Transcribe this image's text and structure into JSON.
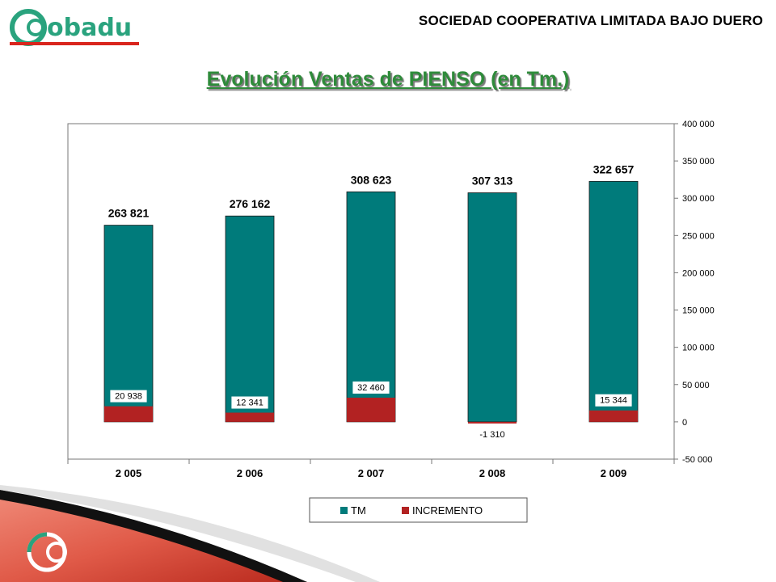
{
  "header": {
    "logo_text": "Cobadu",
    "organization": "SOCIEDAD COOPERATIVA LIMITADA BAJO DUERO",
    "title": "Evolución Ventas de PIENSO (en Tm.)"
  },
  "colors": {
    "tm": "#007b7b",
    "incremento": "#b22222",
    "title": "#2e8b3a",
    "logo": "#2aa37e",
    "logo_accent": "#d9251d"
  },
  "chart_data": {
    "type": "bar",
    "categories": [
      "2 005",
      "2 006",
      "2 007",
      "2 008",
      "2 009"
    ],
    "series": [
      {
        "name": "TM",
        "values": [
          263821,
          276162,
          308623,
          307313,
          322657
        ],
        "labels": [
          "263 821",
          "276 162",
          "308 623",
          "307 313",
          "322 657"
        ]
      },
      {
        "name": "INCREMENTO",
        "values": [
          20938,
          12341,
          32460,
          -1310,
          15344
        ],
        "labels": [
          "20 938",
          "12 341",
          "32 460",
          "-1 310",
          "15 344"
        ]
      }
    ],
    "ylim": [
      -50000,
      400000
    ],
    "y_ticks": [
      -50000,
      0,
      50000,
      100000,
      150000,
      200000,
      250000,
      300000,
      350000,
      400000
    ],
    "y_tick_labels": [
      "-50 000",
      "0",
      "50 000",
      "100 000",
      "150 000",
      "200 000",
      "250 000",
      "300 000",
      "350 000",
      "400 000"
    ],
    "y_axis_side": "right",
    "grid": false,
    "legend_position": "bottom",
    "xlabel": "",
    "ylabel": ""
  }
}
